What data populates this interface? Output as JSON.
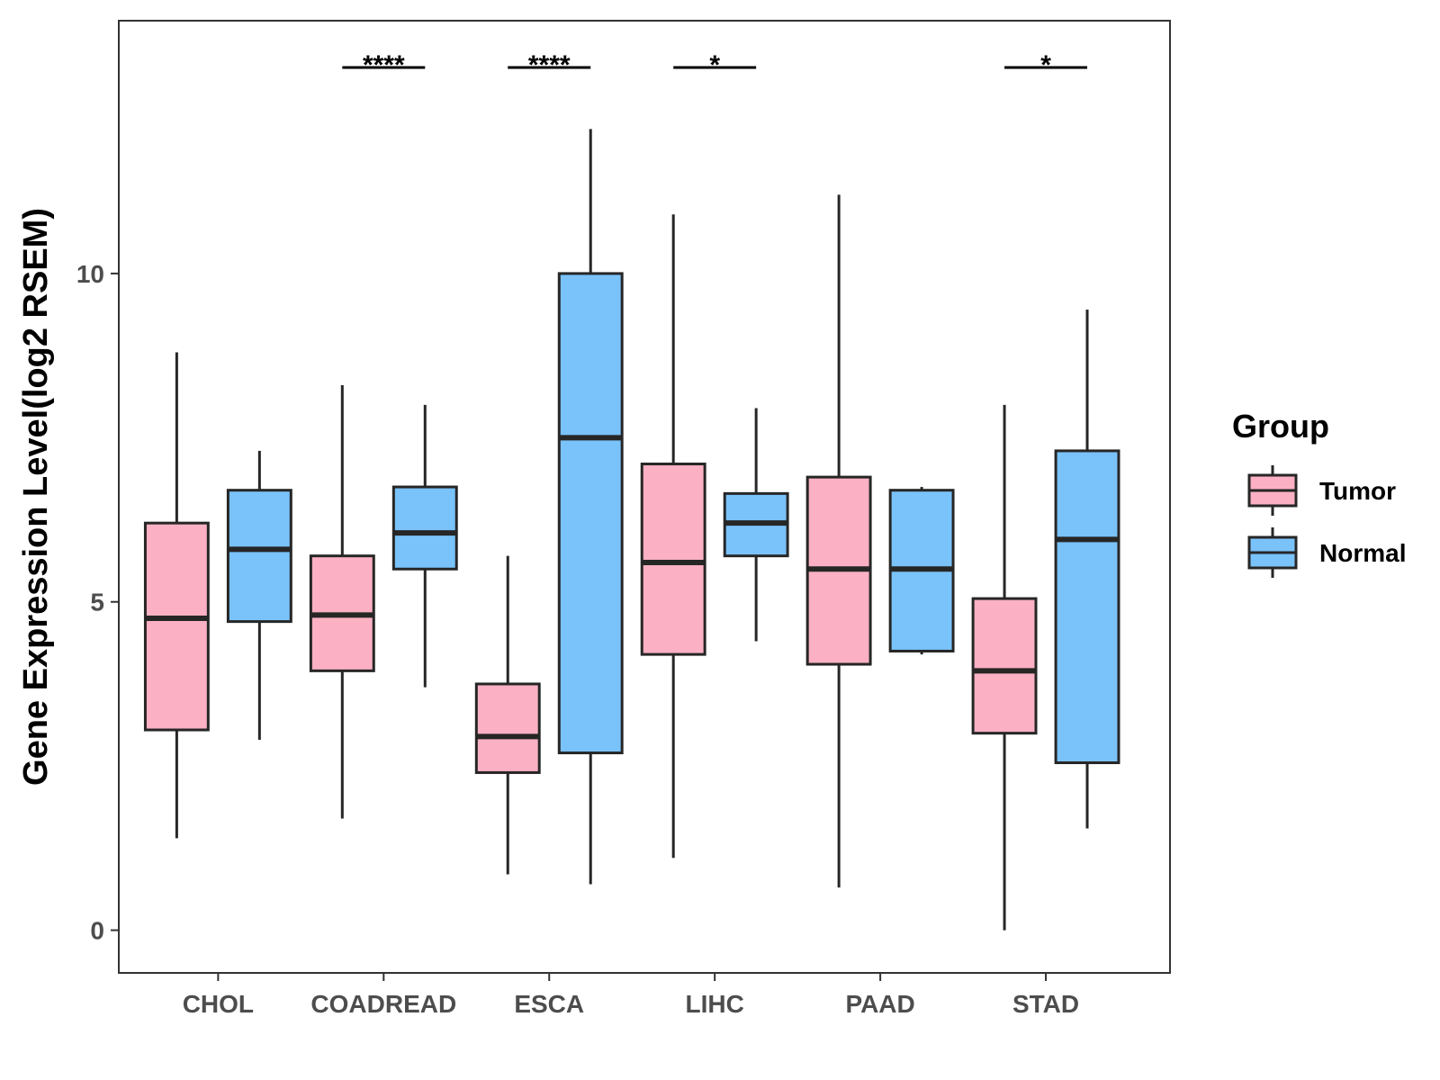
{
  "chart_data": {
    "type": "box",
    "ylabel": "Gene Expression Level(log2 RSEM)",
    "xlabel": "",
    "ylim": [
      -0.65,
      13.85
    ],
    "yticks": [
      0,
      5,
      10
    ],
    "yticks_text": [
      "0",
      "5",
      "10"
    ],
    "grid": false,
    "legend": {
      "title": "Group",
      "position": "right",
      "entries": [
        "Tumor",
        "Normal"
      ]
    },
    "colors": {
      "Tumor": "#fbb1c3",
      "Normal": "#7ac2fa",
      "outline": "#262626"
    },
    "categories": [
      "CHOL",
      "COADREAD",
      "ESCA",
      "LIHC",
      "PAAD",
      "STAD"
    ],
    "series": [
      {
        "name": "Tumor",
        "boxes": [
          {
            "min": 1.4,
            "q1": 3.05,
            "median": 4.75,
            "q3": 6.2,
            "max": 8.8
          },
          {
            "min": 1.7,
            "q1": 3.95,
            "median": 4.8,
            "q3": 5.7,
            "max": 8.3
          },
          {
            "min": 0.85,
            "q1": 2.4,
            "median": 2.95,
            "q3": 3.75,
            "max": 5.7
          },
          {
            "min": 1.1,
            "q1": 4.2,
            "median": 5.6,
            "q3": 7.1,
            "max": 10.9
          },
          {
            "min": 0.65,
            "q1": 4.05,
            "median": 5.5,
            "q3": 6.9,
            "max": 11.2
          },
          {
            "min": 0.0,
            "q1": 3.0,
            "median": 3.95,
            "q3": 5.05,
            "max": 8.0
          }
        ]
      },
      {
        "name": "Normal",
        "boxes": [
          {
            "min": 2.9,
            "q1": 4.7,
            "median": 5.8,
            "q3": 6.7,
            "max": 7.3
          },
          {
            "min": 3.7,
            "q1": 5.5,
            "median": 6.05,
            "q3": 6.75,
            "max": 8.0
          },
          {
            "min": 0.7,
            "q1": 2.7,
            "median": 7.5,
            "q3": 10.0,
            "max": 12.2
          },
          {
            "min": 4.4,
            "q1": 5.7,
            "median": 6.2,
            "q3": 6.65,
            "max": 7.95
          },
          {
            "min": 4.2,
            "q1": 4.25,
            "median": 5.5,
            "q3": 6.7,
            "max": 6.75
          },
          {
            "min": 1.55,
            "q1": 2.55,
            "median": 5.95,
            "q3": 7.3,
            "max": 9.45
          }
        ]
      }
    ],
    "annotations": [
      {
        "category": "COADREAD",
        "label": "****"
      },
      {
        "category": "ESCA",
        "label": "****"
      },
      {
        "category": "LIHC",
        "label": "*"
      },
      {
        "category": "STAD",
        "label": "*"
      }
    ]
  }
}
